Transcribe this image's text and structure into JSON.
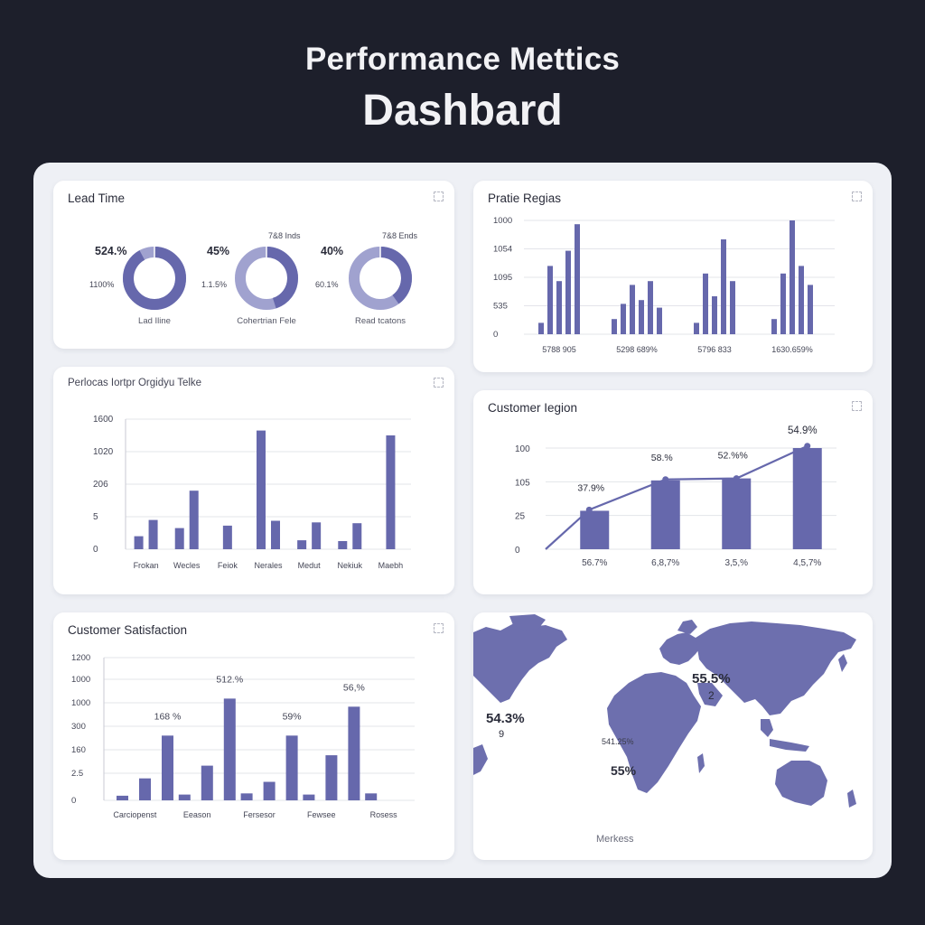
{
  "header": {
    "line1": "Performance Mettics",
    "line2": "Dashbard"
  },
  "colors": {
    "background": "#1d1f2b",
    "panel": "#eef0f5",
    "accent": "#6668ac",
    "accent_light": "#a0a2cf",
    "grid": "#e3e4ea"
  },
  "icons": {
    "expand": "expand-icon"
  },
  "cards": {
    "lead_time": {
      "title": "Lead Time",
      "donuts": [
        {
          "top_label": "",
          "left_label": "524.%",
          "left_sub": "1100%",
          "caption": "Lad Iline",
          "pct": 92
        },
        {
          "top_label": "7&8 Inds",
          "left_label": "45%",
          "left_sub": "1.1.5%",
          "caption": "Cohertrian Fele",
          "pct": 45
        },
        {
          "top_label": "7&8 Ends",
          "left_label": "40%",
          "left_sub": "60.1%",
          "caption": "Read tcatons",
          "pct": 40
        }
      ]
    },
    "prate_regias": {
      "title": "Pratie Regias",
      "chart_data": {
        "type": "bar",
        "categories": [
          "5788 905",
          "5298 689%",
          "5796 833",
          "1630.659%"
        ],
        "values_per_group": [
          [
            3,
            18,
            14,
            22,
            29
          ],
          [
            4,
            8,
            13,
            9,
            14,
            7
          ],
          [
            3,
            16,
            10,
            25,
            14
          ],
          [
            4,
            16,
            30,
            18,
            13
          ]
        ],
        "ylabels": [
          "1000",
          "1054",
          "1095",
          "535",
          "0"
        ]
      }
    },
    "periods": {
      "title": "Perlocas Iortpr Orgidyu Telke",
      "chart_data": {
        "type": "bar",
        "categories": [
          "Frokan",
          "Wecles",
          "Feiok",
          "Nerales",
          "Medut",
          "Nekiuk",
          "Maebh"
        ],
        "ylabels": [
          "1600",
          "1020",
          "206",
          "5",
          "0"
        ],
        "values_per_group": [
          [
            160,
            360
          ],
          [
            260,
            720
          ],
          [
            290
          ],
          [
            1460,
            350
          ],
          [
            110,
            330
          ],
          [
            100,
            320
          ],
          [
            1400
          ]
        ]
      }
    },
    "customer_region": {
      "title": "Customer Iegion",
      "top_label": "54.9%",
      "chart_data": {
        "type": "bar",
        "categories": [
          "56.7%",
          "6,8,7%",
          "3,5,%",
          "4,5,7%"
        ],
        "values": [
          38,
          68,
          70,
          100
        ],
        "line_values": [
          0,
          39,
          69,
          70,
          102
        ],
        "bar_labels": [
          "37.9%",
          "58.%",
          "52.%%",
          ""
        ],
        "ylabels": [
          "100",
          "105",
          "25",
          "0"
        ]
      }
    },
    "customer_satisfaction": {
      "title": "Customer Satisfaction",
      "chart_data": {
        "type": "bar",
        "categories": [
          "Carciopenst",
          "Eeason",
          "Fersesor",
          "Fewsee",
          "Rosess"
        ],
        "ylabels": [
          "1200",
          "1000",
          "1000",
          "300",
          "160",
          "2.5",
          "0"
        ],
        "values_per_group": [
          [
            40,
            190,
            560
          ],
          [
            50,
            300,
            880
          ],
          [
            60,
            160,
            560
          ],
          [
            50,
            390,
            810
          ],
          [
            60
          ]
        ],
        "bar_labels": [
          "168 %",
          "512.%",
          "59%",
          "56,%"
        ]
      }
    },
    "map": {
      "labels": {
        "left_big": "54.3%",
        "left_small": "9",
        "asia": "55.5%",
        "asia_sub": "2",
        "africa_top": "541.25%",
        "africa": "55%",
        "caption": "Merkess"
      }
    }
  }
}
